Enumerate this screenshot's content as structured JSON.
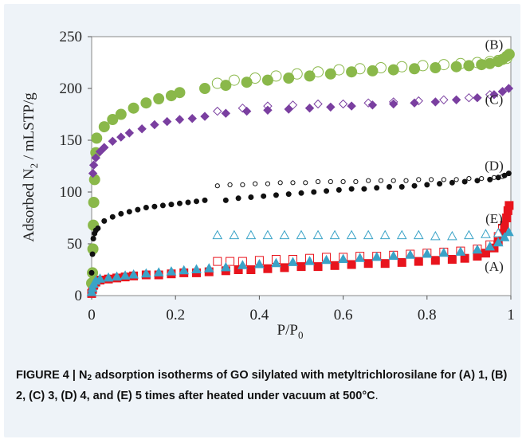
{
  "caption": {
    "figure_label": "FIGURE 4 | N",
    "subscript": "2",
    "text": " adsorption isotherms of GO silylated with metyltrichlorosilane for (A) 1, (B) 2, (C) 3, (D) 4, and (E) 5 times after heated under vacuum at 500°C",
    "tail": "."
  },
  "chart_data": {
    "type": "scatter",
    "xlabel_main": "P/P",
    "xlabel_sub": "0",
    "ylabel_pre": "Adsorbed N",
    "ylabel_sub": "2",
    "ylabel_post": " / mLSTP/g",
    "xlim": [
      0,
      1
    ],
    "ylim": [
      0,
      250
    ],
    "xticks": [
      "0",
      "0.2",
      "0.4",
      "0.6",
      "0.8",
      "1"
    ],
    "yticks": [
      "0",
      "50",
      "100",
      "150",
      "200",
      "250"
    ],
    "grid": false,
    "series": [
      {
        "name": "(A)",
        "color": "#e8141d",
        "marker": "square",
        "adsorption": [
          [
            0.0,
            2
          ],
          [
            0.002,
            6
          ],
          [
            0.005,
            10
          ],
          [
            0.01,
            13
          ],
          [
            0.02,
            15
          ],
          [
            0.04,
            16
          ],
          [
            0.06,
            17
          ],
          [
            0.08,
            18
          ],
          [
            0.1,
            19
          ],
          [
            0.13,
            20
          ],
          [
            0.16,
            20
          ],
          [
            0.19,
            21
          ],
          [
            0.22,
            22
          ],
          [
            0.25,
            22
          ],
          [
            0.28,
            23
          ],
          [
            0.32,
            24
          ],
          [
            0.35,
            25
          ],
          [
            0.38,
            25
          ],
          [
            0.42,
            26
          ],
          [
            0.46,
            27
          ],
          [
            0.5,
            28
          ],
          [
            0.54,
            28
          ],
          [
            0.58,
            29
          ],
          [
            0.62,
            30
          ],
          [
            0.66,
            31
          ],
          [
            0.7,
            31
          ],
          [
            0.74,
            32
          ],
          [
            0.78,
            33
          ],
          [
            0.82,
            34
          ],
          [
            0.86,
            35
          ],
          [
            0.89,
            36
          ],
          [
            0.92,
            38
          ],
          [
            0.94,
            41
          ],
          [
            0.96,
            46
          ],
          [
            0.97,
            52
          ],
          [
            0.98,
            60
          ],
          [
            0.985,
            68
          ],
          [
            0.99,
            75
          ],
          [
            0.993,
            82
          ],
          [
            0.996,
            87
          ]
        ],
        "desorption": [
          [
            0.3,
            33
          ],
          [
            0.33,
            33
          ],
          [
            0.36,
            33
          ],
          [
            0.4,
            34
          ],
          [
            0.44,
            35
          ],
          [
            0.48,
            35
          ],
          [
            0.52,
            36
          ],
          [
            0.56,
            37
          ],
          [
            0.6,
            37
          ],
          [
            0.64,
            38
          ],
          [
            0.68,
            38
          ],
          [
            0.72,
            39
          ],
          [
            0.76,
            40
          ],
          [
            0.8,
            41
          ],
          [
            0.84,
            42
          ],
          [
            0.88,
            43
          ],
          [
            0.92,
            45
          ],
          [
            0.95,
            49
          ],
          [
            0.97,
            57
          ],
          [
            0.98,
            65
          ],
          [
            0.99,
            75
          ]
        ]
      },
      {
        "name": "(B)",
        "color": "#8ab84a",
        "marker": "circle",
        "adsorption": [
          [
            0.0,
            12
          ],
          [
            0.002,
            22
          ],
          [
            0.003,
            45
          ],
          [
            0.004,
            68
          ],
          [
            0.005,
            90
          ],
          [
            0.007,
            112
          ],
          [
            0.01,
            138
          ],
          [
            0.012,
            152
          ],
          [
            0.03,
            163
          ],
          [
            0.05,
            170
          ],
          [
            0.07,
            175
          ],
          [
            0.1,
            181
          ],
          [
            0.13,
            186
          ],
          [
            0.16,
            190
          ],
          [
            0.19,
            193
          ],
          [
            0.21,
            196
          ],
          [
            0.27,
            200
          ],
          [
            0.32,
            203
          ],
          [
            0.37,
            206
          ],
          [
            0.42,
            208
          ],
          [
            0.47,
            210
          ],
          [
            0.52,
            212
          ],
          [
            0.57,
            214
          ],
          [
            0.62,
            216
          ],
          [
            0.67,
            217
          ],
          [
            0.72,
            218
          ],
          [
            0.77,
            219
          ],
          [
            0.82,
            220
          ],
          [
            0.87,
            221
          ],
          [
            0.9,
            222
          ],
          [
            0.93,
            223
          ],
          [
            0.95,
            224
          ],
          [
            0.97,
            226
          ],
          [
            0.98,
            228
          ],
          [
            0.99,
            231
          ],
          [
            0.996,
            233
          ]
        ],
        "desorption": [
          [
            0.3,
            205
          ],
          [
            0.34,
            208
          ],
          [
            0.39,
            210
          ],
          [
            0.44,
            212
          ],
          [
            0.49,
            214
          ],
          [
            0.54,
            216
          ],
          [
            0.59,
            218
          ],
          [
            0.64,
            219
          ],
          [
            0.69,
            220
          ],
          [
            0.74,
            221
          ],
          [
            0.79,
            222
          ],
          [
            0.84,
            223
          ],
          [
            0.88,
            224
          ],
          [
            0.92,
            225
          ],
          [
            0.95,
            226
          ],
          [
            0.97,
            227
          ],
          [
            0.99,
            229
          ]
        ]
      },
      {
        "name": "(C)",
        "color": "#7a3fa0",
        "marker": "diamond",
        "adsorption": [
          [
            0.003,
            118
          ],
          [
            0.005,
            126
          ],
          [
            0.01,
            133
          ],
          [
            0.02,
            139
          ],
          [
            0.03,
            143
          ],
          [
            0.05,
            149
          ],
          [
            0.07,
            153
          ],
          [
            0.09,
            157
          ],
          [
            0.12,
            161
          ],
          [
            0.15,
            165
          ],
          [
            0.18,
            168
          ],
          [
            0.21,
            170
          ],
          [
            0.24,
            171
          ],
          [
            0.27,
            173
          ],
          [
            0.32,
            176
          ],
          [
            0.37,
            178
          ],
          [
            0.42,
            179
          ],
          [
            0.47,
            180
          ],
          [
            0.52,
            181
          ],
          [
            0.57,
            182
          ],
          [
            0.62,
            183
          ],
          [
            0.67,
            184
          ],
          [
            0.72,
            185
          ],
          [
            0.77,
            186
          ],
          [
            0.82,
            187
          ],
          [
            0.87,
            189
          ],
          [
            0.92,
            191
          ],
          [
            0.96,
            194
          ],
          [
            0.98,
            197
          ],
          [
            0.995,
            200
          ]
        ],
        "desorption": [
          [
            0.3,
            178
          ],
          [
            0.36,
            181
          ],
          [
            0.42,
            183
          ],
          [
            0.48,
            184
          ],
          [
            0.54,
            185
          ],
          [
            0.6,
            185
          ],
          [
            0.66,
            186
          ],
          [
            0.72,
            187
          ],
          [
            0.78,
            188
          ],
          [
            0.84,
            189
          ],
          [
            0.9,
            191
          ],
          [
            0.95,
            194
          ],
          [
            0.98,
            197
          ]
        ]
      },
      {
        "name": "(D)",
        "color": "#111111",
        "marker": "dot",
        "adsorption": [
          [
            0.0,
            22
          ],
          [
            0.002,
            40
          ],
          [
            0.004,
            55
          ],
          [
            0.007,
            60
          ],
          [
            0.01,
            63
          ],
          [
            0.015,
            65
          ],
          [
            0.03,
            72
          ],
          [
            0.05,
            76
          ],
          [
            0.07,
            79
          ],
          [
            0.09,
            81
          ],
          [
            0.11,
            83
          ],
          [
            0.13,
            85
          ],
          [
            0.15,
            86
          ],
          [
            0.17,
            87
          ],
          [
            0.19,
            88
          ],
          [
            0.21,
            89
          ],
          [
            0.23,
            90
          ],
          [
            0.25,
            91
          ],
          [
            0.27,
            92
          ],
          [
            0.32,
            92
          ],
          [
            0.35,
            94
          ],
          [
            0.38,
            95
          ],
          [
            0.41,
            96
          ],
          [
            0.44,
            97
          ],
          [
            0.47,
            98
          ],
          [
            0.5,
            99
          ],
          [
            0.53,
            100
          ],
          [
            0.56,
            101
          ],
          [
            0.59,
            102
          ],
          [
            0.62,
            103
          ],
          [
            0.65,
            103
          ],
          [
            0.68,
            104
          ],
          [
            0.71,
            105
          ],
          [
            0.74,
            105
          ],
          [
            0.77,
            106
          ],
          [
            0.8,
            107
          ],
          [
            0.83,
            108
          ],
          [
            0.86,
            109
          ],
          [
            0.89,
            110
          ],
          [
            0.92,
            111
          ],
          [
            0.95,
            112
          ],
          [
            0.97,
            114
          ],
          [
            0.985,
            116
          ],
          [
            0.995,
            118
          ]
        ],
        "desorption": [
          [
            0.3,
            106
          ],
          [
            0.33,
            107
          ],
          [
            0.36,
            107
          ],
          [
            0.39,
            108
          ],
          [
            0.42,
            108
          ],
          [
            0.45,
            109
          ],
          [
            0.48,
            109
          ],
          [
            0.51,
            109
          ],
          [
            0.54,
            110
          ],
          [
            0.57,
            110
          ],
          [
            0.6,
            110
          ],
          [
            0.63,
            110
          ],
          [
            0.66,
            111
          ],
          [
            0.69,
            111
          ],
          [
            0.72,
            111
          ],
          [
            0.75,
            111
          ],
          [
            0.78,
            112
          ],
          [
            0.81,
            112
          ],
          [
            0.84,
            112
          ],
          [
            0.87,
            112
          ],
          [
            0.9,
            113
          ],
          [
            0.93,
            113
          ],
          [
            0.96,
            114
          ],
          [
            0.98,
            115
          ]
        ]
      },
      {
        "name": "(E)",
        "color": "#3aa3c7",
        "marker": "triangle",
        "adsorption": [
          [
            0.0,
            3
          ],
          [
            0.002,
            7
          ],
          [
            0.005,
            11
          ],
          [
            0.01,
            14
          ],
          [
            0.02,
            16
          ],
          [
            0.04,
            17
          ],
          [
            0.06,
            18
          ],
          [
            0.08,
            19
          ],
          [
            0.1,
            20
          ],
          [
            0.13,
            21
          ],
          [
            0.16,
            22
          ],
          [
            0.19,
            23
          ],
          [
            0.22,
            24
          ],
          [
            0.25,
            25
          ],
          [
            0.28,
            26
          ],
          [
            0.32,
            27
          ],
          [
            0.36,
            29
          ],
          [
            0.4,
            30
          ],
          [
            0.44,
            31
          ],
          [
            0.48,
            32
          ],
          [
            0.52,
            33
          ],
          [
            0.56,
            34
          ],
          [
            0.6,
            35
          ],
          [
            0.64,
            36
          ],
          [
            0.68,
            37
          ],
          [
            0.72,
            38
          ],
          [
            0.76,
            39
          ],
          [
            0.8,
            40
          ],
          [
            0.84,
            41
          ],
          [
            0.88,
            42
          ],
          [
            0.92,
            44
          ],
          [
            0.95,
            47
          ],
          [
            0.97,
            51
          ],
          [
            0.985,
            56
          ],
          [
            0.995,
            61
          ]
        ],
        "desorption": [
          [
            0.3,
            58
          ],
          [
            0.34,
            58
          ],
          [
            0.38,
            58
          ],
          [
            0.42,
            58
          ],
          [
            0.46,
            58
          ],
          [
            0.5,
            58
          ],
          [
            0.54,
            58
          ],
          [
            0.58,
            58
          ],
          [
            0.62,
            58
          ],
          [
            0.66,
            58
          ],
          [
            0.7,
            58
          ],
          [
            0.74,
            58
          ],
          [
            0.78,
            58
          ],
          [
            0.82,
            57
          ],
          [
            0.86,
            57
          ],
          [
            0.9,
            58
          ],
          [
            0.94,
            59
          ],
          [
            0.97,
            60
          ]
        ]
      }
    ],
    "annotations": [
      {
        "text": "(B)",
        "x": 0.96,
        "y": 238
      },
      {
        "text": "(C)",
        "x": 0.96,
        "y": 185
      },
      {
        "text": "(D)",
        "x": 0.96,
        "y": 121
      },
      {
        "text": "(E)",
        "x": 0.96,
        "y": 70
      },
      {
        "text": "(A)",
        "x": 0.96,
        "y": 24
      }
    ]
  }
}
